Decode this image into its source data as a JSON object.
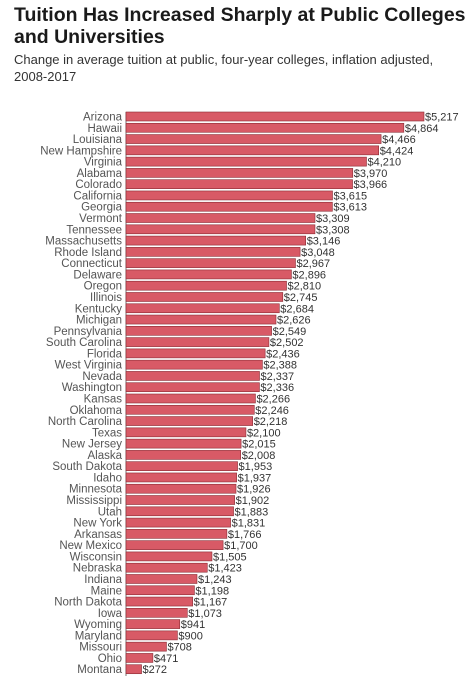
{
  "chart_data": {
    "type": "bar",
    "orientation": "horizontal",
    "title": "Tuition Has Increased Sharply at Public Colleges and Universities",
    "subtitle": "Change in average tuition at public, four-year colleges, inflation adjusted, 2008-2017",
    "bar_color": "#d85a66",
    "bar_outline_color": "#8a2a33",
    "categories": [
      "Arizona",
      "Hawaii",
      "Louisiana",
      "New Hampshire",
      "Virginia",
      "Alabama",
      "Colorado",
      "California",
      "Georgia",
      "Vermont",
      "Tennessee",
      "Massachusetts",
      "Rhode Island",
      "Connecticut",
      "Delaware",
      "Oregon",
      "Illinois",
      "Kentucky",
      "Michigan",
      "Pennsylvania",
      "South Carolina",
      "Florida",
      "West Virginia",
      "Nevada",
      "Washington",
      "Kansas",
      "Oklahoma",
      "North Carolina",
      "Texas",
      "New Jersey",
      "Alaska",
      "South Dakota",
      "Idaho",
      "Minnesota",
      "Mississippi",
      "Utah",
      "New York",
      "Arkansas",
      "New Mexico",
      "Wisconsin",
      "Nebraska",
      "Indiana",
      "Maine",
      "North Dakota",
      "Iowa",
      "Wyoming",
      "Maryland",
      "Missouri",
      "Ohio",
      "Montana"
    ],
    "values": [
      5217,
      4864,
      4466,
      4424,
      4210,
      3970,
      3966,
      3615,
      3613,
      3309,
      3308,
      3146,
      3048,
      2967,
      2896,
      2810,
      2745,
      2684,
      2626,
      2549,
      2502,
      2436,
      2388,
      2337,
      2336,
      2266,
      2246,
      2218,
      2100,
      2015,
      2008,
      1953,
      1937,
      1926,
      1902,
      1883,
      1831,
      1766,
      1700,
      1505,
      1423,
      1243,
      1198,
      1167,
      1073,
      941,
      900,
      708,
      471,
      272
    ],
    "value_labels": [
      "$5,217",
      "$4,864",
      "$4,466",
      "$4,424",
      "$4,210",
      "$3,970",
      "$3,966",
      "$3,615",
      "$3,613",
      "$3,309",
      "$3,308",
      "$3,146",
      "$3,048",
      "$2,967",
      "$2,896",
      "$2,810",
      "$2,745",
      "$2,684",
      "$2,626",
      "$2,549",
      "$2,502",
      "$2,436",
      "$2,388",
      "$2,337",
      "$2,336",
      "$2,266",
      "$2,246",
      "$2,218",
      "$2,100",
      "$2,015",
      "$2,008",
      "$1,953",
      "$1,937",
      "$1,926",
      "$1,902",
      "$1,883",
      "$1,831",
      "$1,766",
      "$1,700",
      "$1,505",
      "$1,423",
      "$1,243",
      "$1,198",
      "$1,167",
      "$1,073",
      "$941",
      "$900",
      "$708",
      "$471",
      "$272"
    ],
    "xlim": [
      0,
      5217
    ],
    "grid": false,
    "legend": "none"
  }
}
